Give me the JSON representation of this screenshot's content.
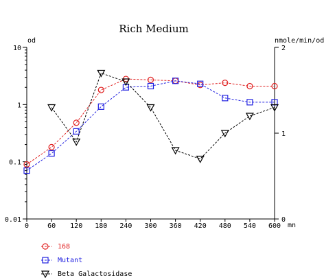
{
  "chart_data": {
    "type": "line",
    "title": "Rich Medium",
    "x_unit": "mn",
    "y_left_label": "od",
    "y_right_label": "nmole/min/od",
    "x_ticks": [
      "0",
      "60",
      "120",
      "180",
      "240",
      "300",
      "360",
      "420",
      "480",
      "540",
      "600"
    ],
    "y_left_ticks": [
      "10",
      "1",
      "0.1",
      "0.01"
    ],
    "y_right_ticks": [
      "2",
      "1",
      "0"
    ],
    "xlim": [
      0,
      600
    ],
    "y_left_lim": [
      0.01,
      10
    ],
    "y_left_scale": "log",
    "y_right_lim": [
      0,
      2
    ],
    "y_right_scale": "linear",
    "grid": false,
    "legend_position": "bottom-left",
    "series": [
      {
        "name": "168",
        "axis": "left",
        "marker": "circle",
        "color": "#e02020",
        "x": [
          0,
          60,
          120,
          180,
          240,
          300,
          360,
          420,
          480,
          540,
          600
        ],
        "values": [
          0.09,
          0.18,
          0.48,
          1.8,
          2.8,
          2.7,
          2.6,
          2.2,
          2.4,
          2.1,
          2.1
        ]
      },
      {
        "name": "Mutant",
        "axis": "left",
        "marker": "square",
        "color": "#2020e0",
        "x": [
          0,
          60,
          120,
          180,
          240,
          300,
          360,
          420,
          480,
          540,
          600
        ],
        "values": [
          0.07,
          0.14,
          0.34,
          0.92,
          2.0,
          2.1,
          2.6,
          2.3,
          1.3,
          1.1,
          1.1
        ]
      },
      {
        "name": "Beta Galactosidase",
        "axis": "right",
        "marker": "triangle-down",
        "color": "#000000",
        "x": [
          60,
          120,
          180,
          240,
          300,
          360,
          420,
          480,
          540,
          600
        ],
        "values": [
          1.3,
          0.9,
          1.7,
          1.6,
          1.3,
          0.8,
          0.7,
          1.0,
          1.2,
          1.3
        ]
      }
    ]
  }
}
